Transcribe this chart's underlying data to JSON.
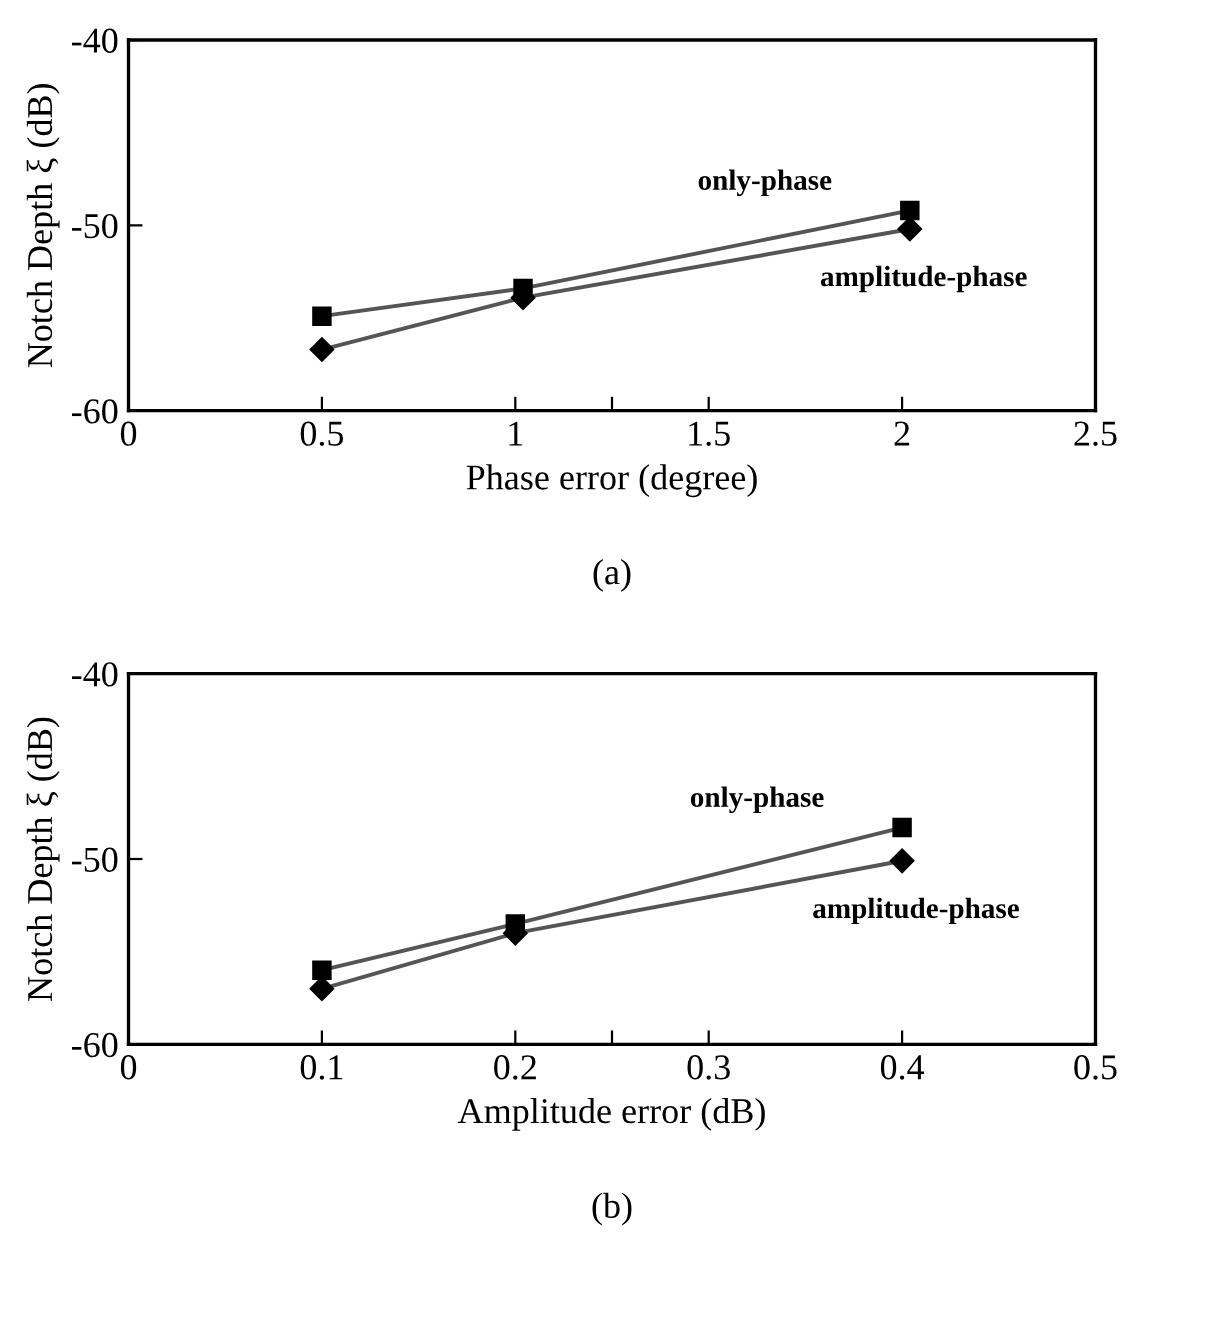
{
  "chart_data": [
    {
      "type": "line",
      "xlabel": "Phase error (degree)",
      "ylabel": "Notch Depth ξ (dB)",
      "annotations": [
        "(a)"
      ],
      "xlim": [
        0,
        2.5
      ],
      "ylim": [
        -60,
        -40
      ],
      "xticks": [
        0,
        0.5,
        1,
        {
          "value": 1.25,
          "label": null
        },
        1.5,
        2,
        2.5
      ],
      "yticks": [
        -60,
        -50,
        -40
      ],
      "grid": false,
      "legend": false,
      "line_style": "solid",
      "series": [
        {
          "name": "only-phase",
          "color": "#000000",
          "marker": "square",
          "x": [
            0.5,
            1.02,
            2.02
          ],
          "values": [
            -54.9,
            -53.4,
            -49.2
          ]
        },
        {
          "name": "amplitude-phase",
          "color": "#000000",
          "marker": "diamond",
          "x": [
            0.5,
            1.02,
            2.02
          ],
          "values": [
            -56.7,
            -53.9,
            -50.2
          ]
        }
      ]
    },
    {
      "type": "line",
      "xlabel": "Amplitude error (dB)",
      "ylabel": "Notch Depth ξ (dB)",
      "annotations": [
        "(b)"
      ],
      "xlim": [
        0,
        0.5
      ],
      "ylim": [
        -60,
        -40
      ],
      "xticks": [
        0,
        0.1,
        0.2,
        {
          "value": 0.25,
          "label": null
        },
        0.3,
        0.4,
        0.5
      ],
      "yticks": [
        -60,
        -50,
        -40
      ],
      "grid": false,
      "legend": false,
      "line_style": "solid",
      "series": [
        {
          "name": "only-phase",
          "color": "#000000",
          "marker": "square",
          "x": [
            0.1,
            0.2,
            0.4
          ],
          "values": [
            -56.0,
            -53.5,
            -48.3
          ]
        },
        {
          "name": "amplitude-phase",
          "color": "#000000",
          "marker": "diamond",
          "x": [
            0.1,
            0.2,
            0.4
          ],
          "values": [
            -57.0,
            -54.0,
            -50.1
          ]
        }
      ]
    }
  ]
}
